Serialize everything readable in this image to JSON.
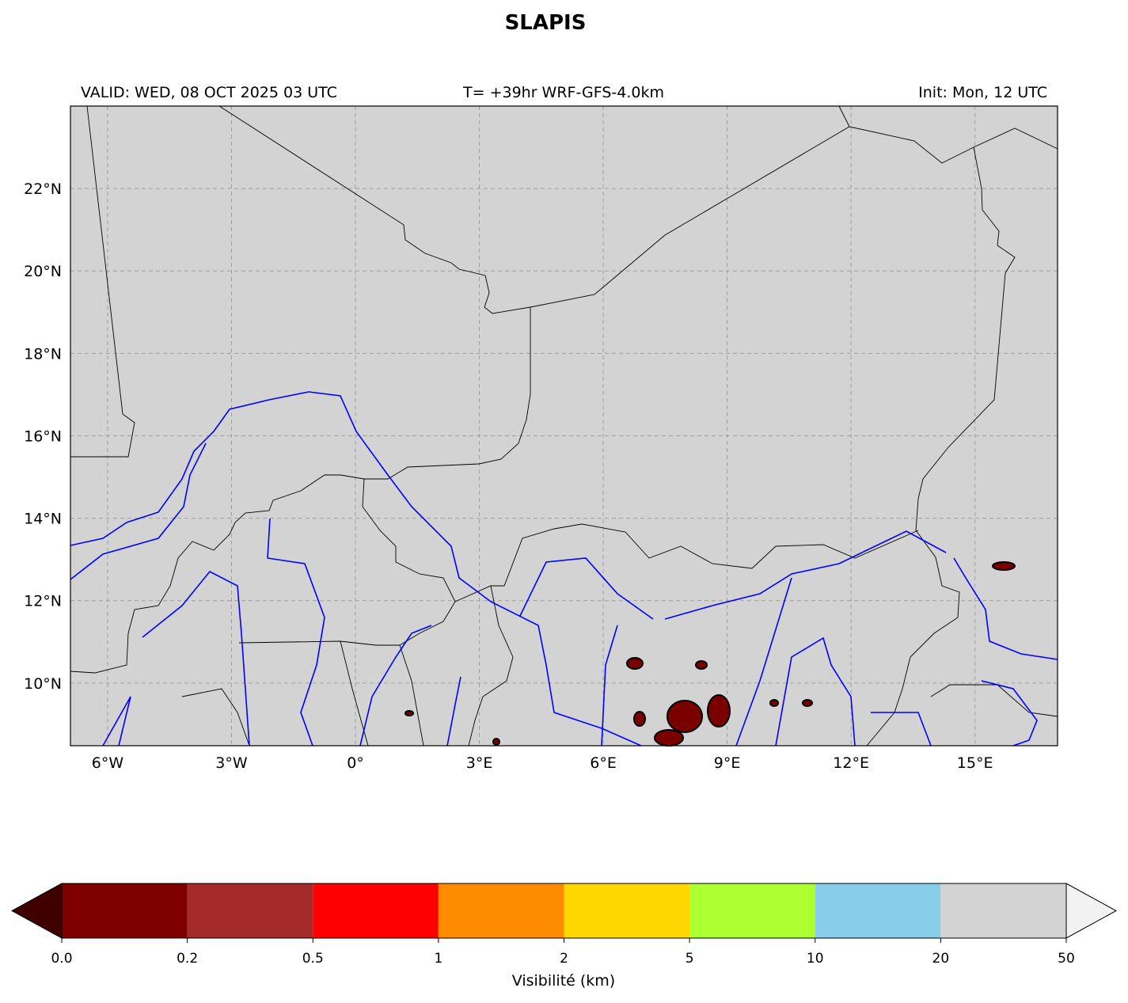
{
  "map": {
    "title": "SLAPIS",
    "valid": "VALID: WED, 08 OCT 2025 03 UTC",
    "run": "T= +39hr WRF-GFS-4.0km",
    "init": "Init: Mon, 12 UTC",
    "xlim": [
      -6.9,
      17.0
    ],
    "ylim": [
      8.48,
      24.0
    ],
    "xticks": [
      {
        "value": -6,
        "label": "6°W"
      },
      {
        "value": -3,
        "label": "3°W"
      },
      {
        "value": 0,
        "label": "0°"
      },
      {
        "value": 3,
        "label": "3°E"
      },
      {
        "value": 6,
        "label": "6°E"
      },
      {
        "value": 9,
        "label": "9°E"
      },
      {
        "value": 12,
        "label": "12°E"
      },
      {
        "value": 15,
        "label": "15°E"
      }
    ],
    "yticks": [
      {
        "value": 10,
        "label": "10°N"
      },
      {
        "value": 12,
        "label": "12°N"
      },
      {
        "value": 14,
        "label": "14°N"
      },
      {
        "value": 16,
        "label": "16°N"
      },
      {
        "value": 18,
        "label": "18°N"
      },
      {
        "value": 20,
        "label": "20°N"
      },
      {
        "value": 22,
        "label": "22°N"
      }
    ],
    "grid": true,
    "land_color": "#d3d3d3",
    "colorbar": {
      "label": "Visibilité (km)",
      "bounds": [
        {
          "value": 0,
          "label": "0.0"
        },
        0.2,
        0.5,
        1,
        2,
        5,
        10,
        20,
        50
      ],
      "colors": [
        "#800000",
        "#a52a2a",
        "#ff0000",
        "#ff8c00",
        "#ffd700",
        "#adff2f",
        "#87ceeb",
        "#d3d3d3"
      ],
      "under_color": "#400000",
      "over_color": "#f2f2f2"
    }
  }
}
